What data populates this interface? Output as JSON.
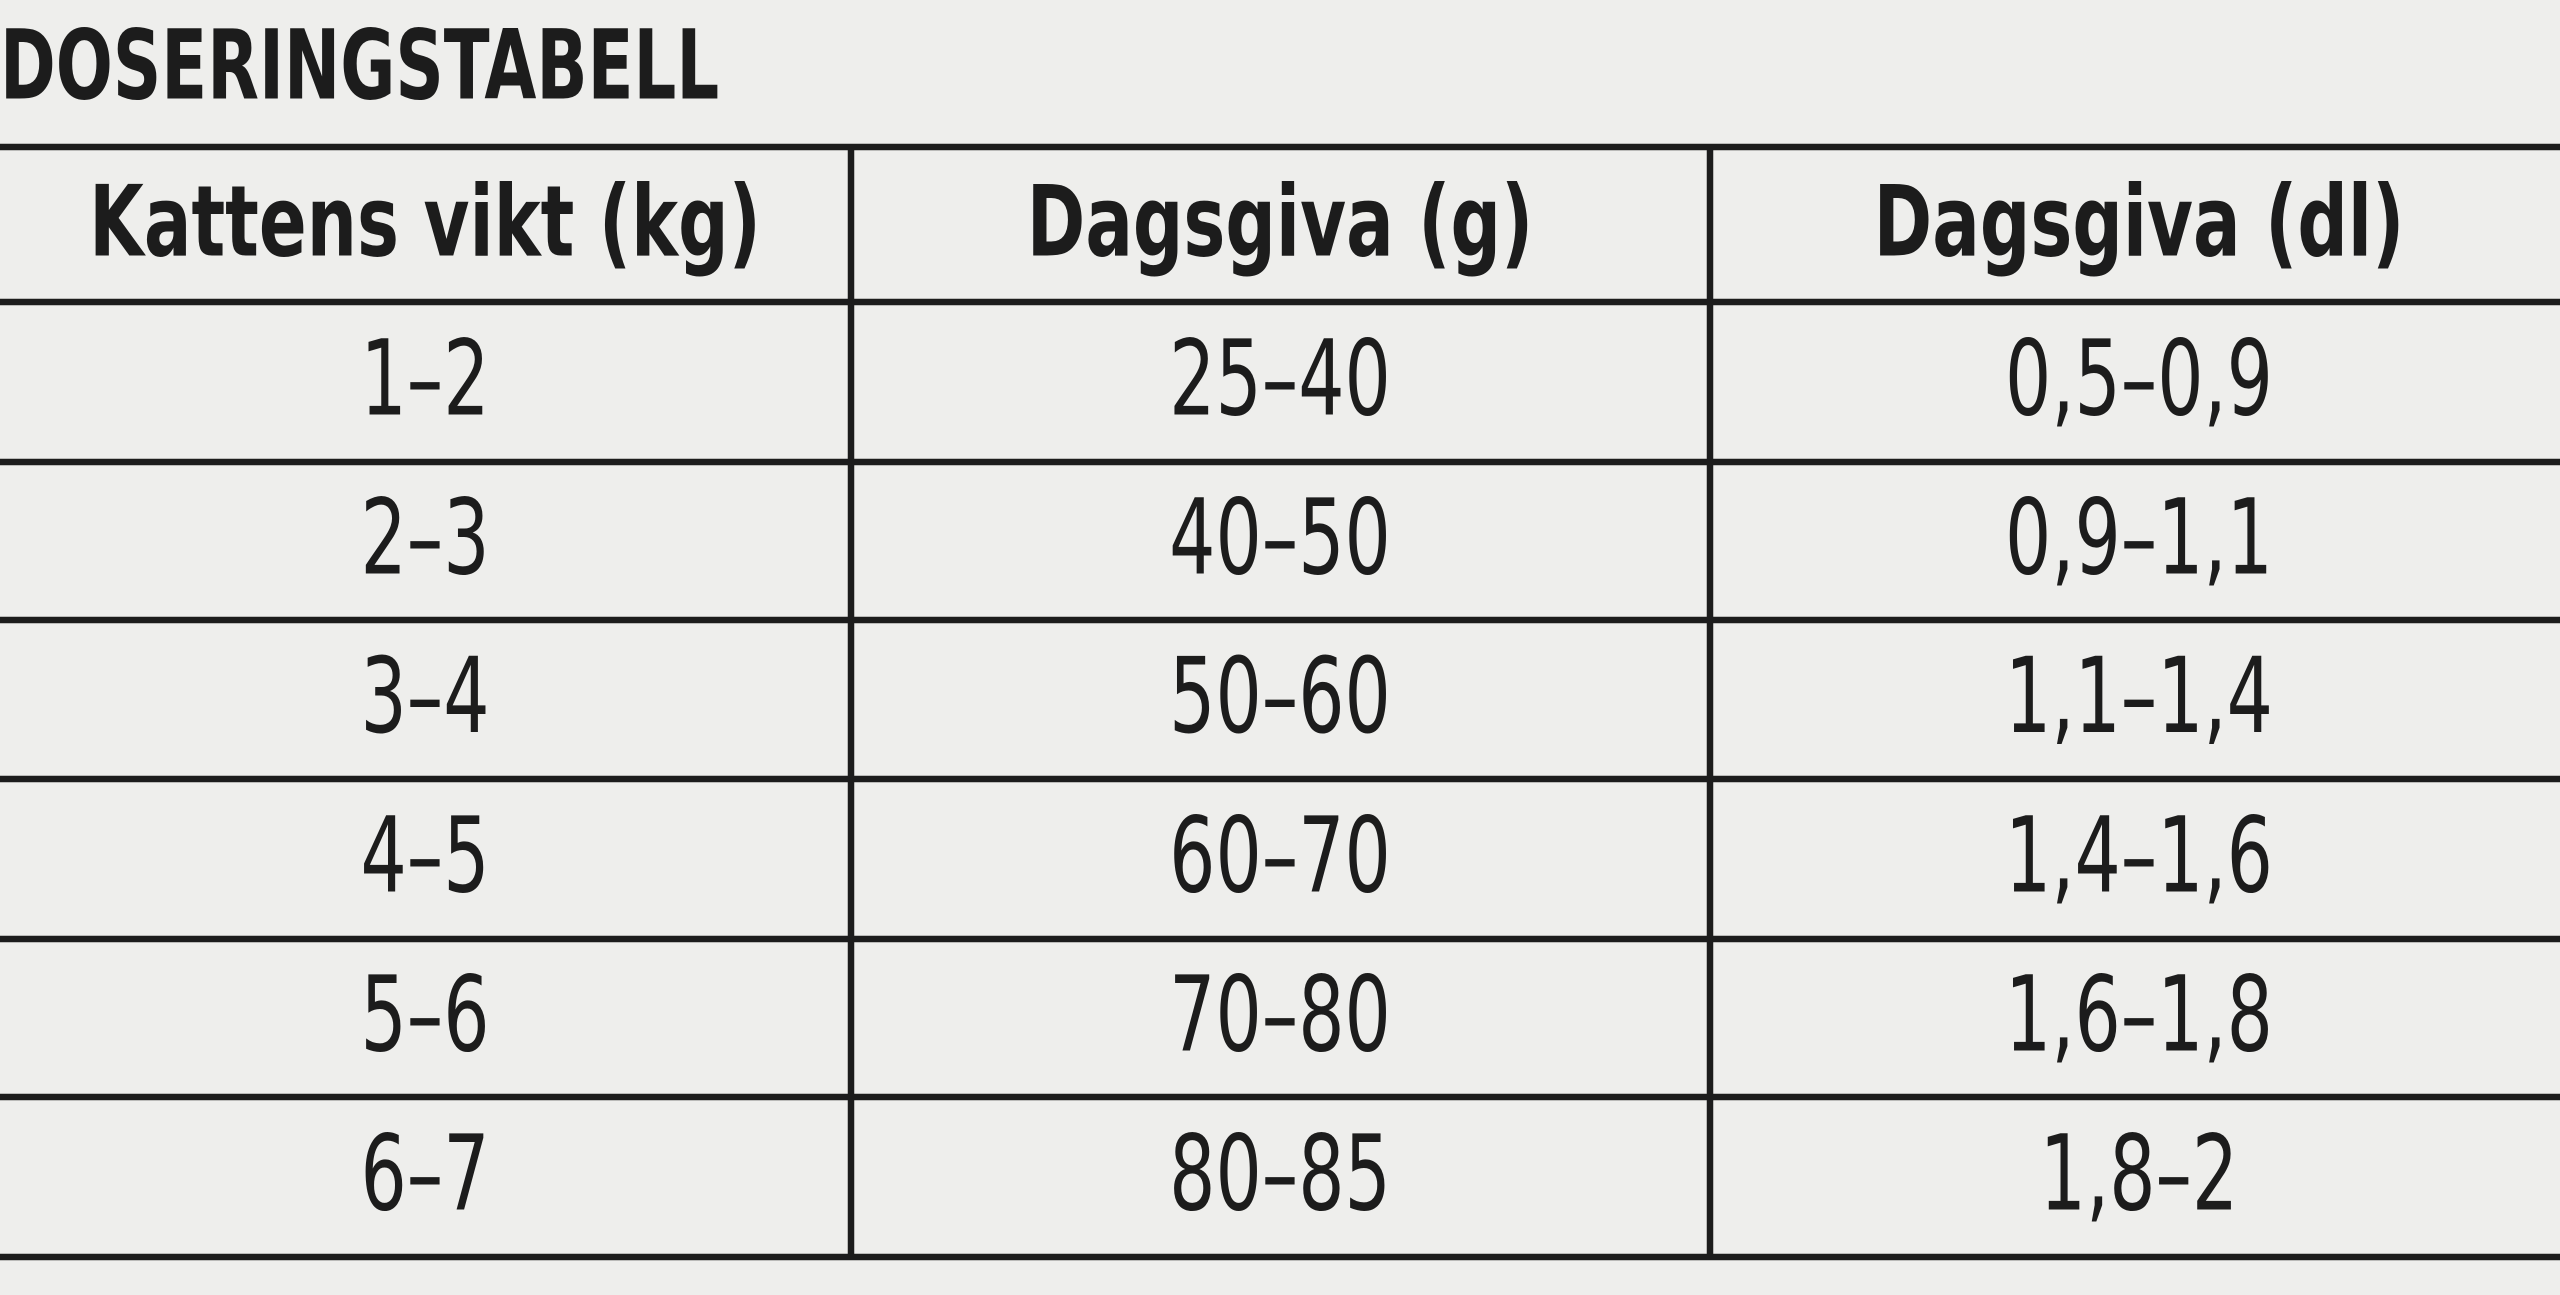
{
  "title": "DOSERINGSTABELL",
  "table": {
    "header": [
      "Kattens vikt (kg)",
      "Dagsgiva (g)",
      "Dagsgiva (dl)"
    ],
    "rows": [
      [
        "1–2",
        "25–40",
        "0,5–0,9"
      ],
      [
        "2–3",
        "40–50",
        "0,9–1,1"
      ],
      [
        "3–4",
        "50–60",
        "1,1–1,4"
      ],
      [
        "4–5",
        "60–70",
        "1,4–1,6"
      ],
      [
        "5–6",
        "70–80",
        "1,6–1,8"
      ],
      [
        "6–7",
        "80–85",
        "1,8–2"
      ]
    ]
  }
}
